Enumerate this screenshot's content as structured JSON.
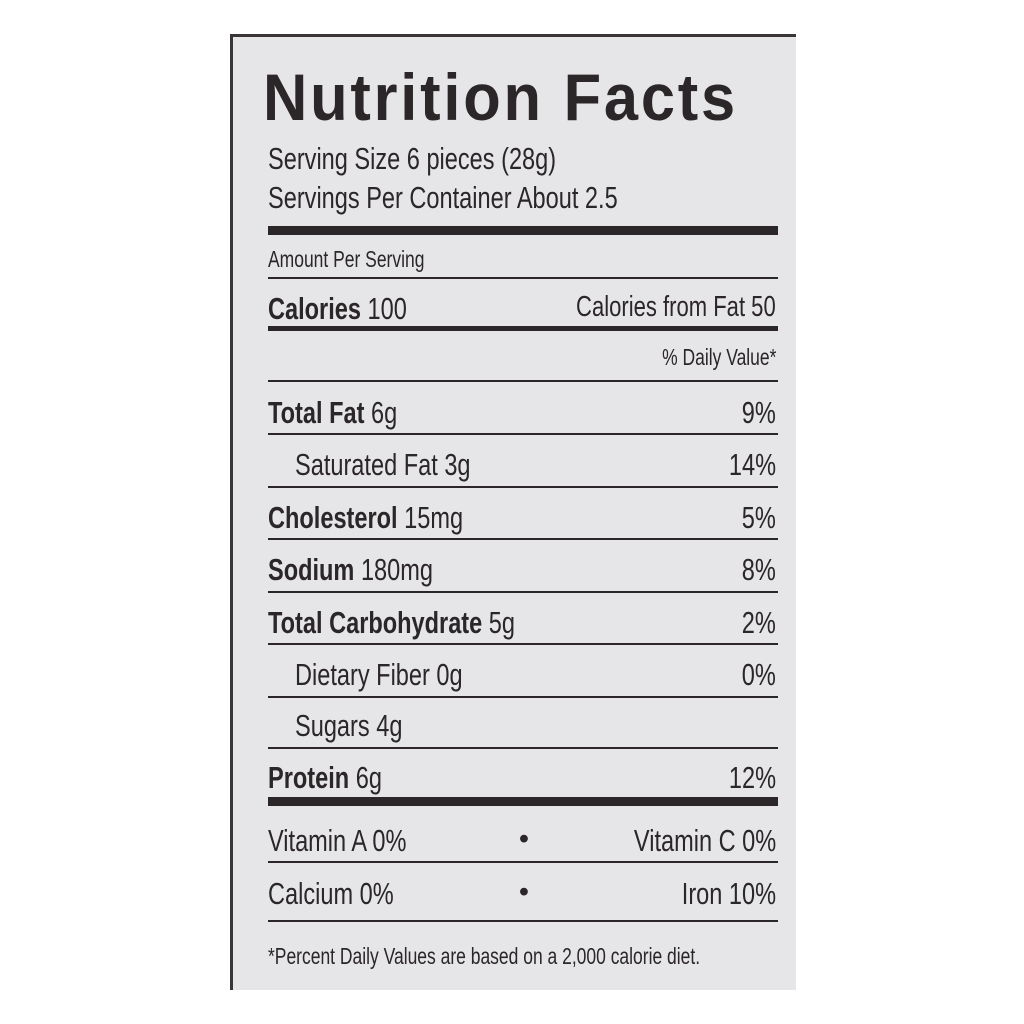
{
  "title": "Nutrition Facts",
  "serving_size": "Serving Size 6 pieces (28g)",
  "servings_per_container": "Servings Per Container About 2.5",
  "amount_per_serving": "Amount Per Serving",
  "calories": {
    "label": "Calories",
    "value": "100",
    "from_fat": "Calories from Fat 50"
  },
  "daily_value_header": "% Daily Value*",
  "nutrients": [
    {
      "label": "Total Fat",
      "amount": "6g",
      "dv": "9%"
    },
    {
      "label": "Saturated Fat",
      "amount": "3g",
      "dv": "14%"
    },
    {
      "label": "Cholesterol",
      "amount": "15mg",
      "dv": "5%"
    },
    {
      "label": "Sodium",
      "amount": "180mg",
      "dv": "8%"
    },
    {
      "label": "Total Carbohydrate",
      "amount": "5g",
      "dv": "2%"
    },
    {
      "label": "Dietary Fiber",
      "amount": "0g",
      "dv": "0%"
    },
    {
      "label": "Sugars",
      "amount": "4g",
      "dv": ""
    },
    {
      "label": "Protein",
      "amount": "6g",
      "dv": "12%"
    }
  ],
  "vitamins": {
    "vitamin_a": "Vitamin A 0%",
    "vitamin_c": "Vitamin C 0%",
    "calcium": "Calcium 0%",
    "iron": "Iron 10%",
    "bullet": "•"
  },
  "footnote": "*Percent Daily Values are based on a 2,000 calorie diet."
}
